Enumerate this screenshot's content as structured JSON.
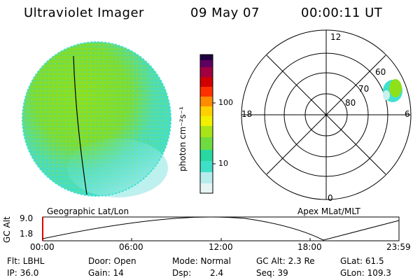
{
  "header": {
    "title": "Ultraviolet Imager",
    "date": "09 May 07",
    "time": "00:00:11 UT"
  },
  "colorbar": {
    "unit": "photon cm⁻²s⁻¹",
    "ticks": [
      "100",
      "10"
    ]
  },
  "polar": {
    "mlt_labels": {
      "top": "12",
      "left": "18",
      "right": "6",
      "bottom": "0"
    },
    "lat_labels": [
      "60",
      "70",
      "80"
    ]
  },
  "timeline": {
    "left_label": "Geographic Lat/Lon",
    "right_label": "Apex MLat/MLT",
    "axis_title": "GC Alt",
    "y_ticks": [
      "9.0",
      "1.8"
    ],
    "x_ticks": [
      "00:00",
      "06:00",
      "12:00",
      "18:00",
      "23:59"
    ]
  },
  "info": {
    "filter": "Flt: LBHL",
    "ip": "IP: 36.0",
    "door": "Door: Open",
    "gain": "Gain: 14",
    "mode": "Mode: Normal",
    "dsp_label": "Dsp:",
    "dsp_value": "2.4",
    "gc_alt": "GC Alt: 2.3 Re",
    "seq": "Seq: 39",
    "glat": "GLat:  61.5",
    "glon": "GLon: 109.3"
  },
  "colors": {
    "disk_green": "#8ee01a",
    "disk_cyan": "#40e0d0",
    "disk_pale": "#c8f0f0",
    "scale": [
      "#e6f4f4",
      "#40e0c8",
      "#00c8c8",
      "#28d8a0",
      "#8ee01a",
      "#c8e800",
      "#f0f000",
      "#ffb000",
      "#ff7800",
      "#ff2800",
      "#d00000",
      "#a00040",
      "#600060",
      "#200040"
    ]
  }
}
